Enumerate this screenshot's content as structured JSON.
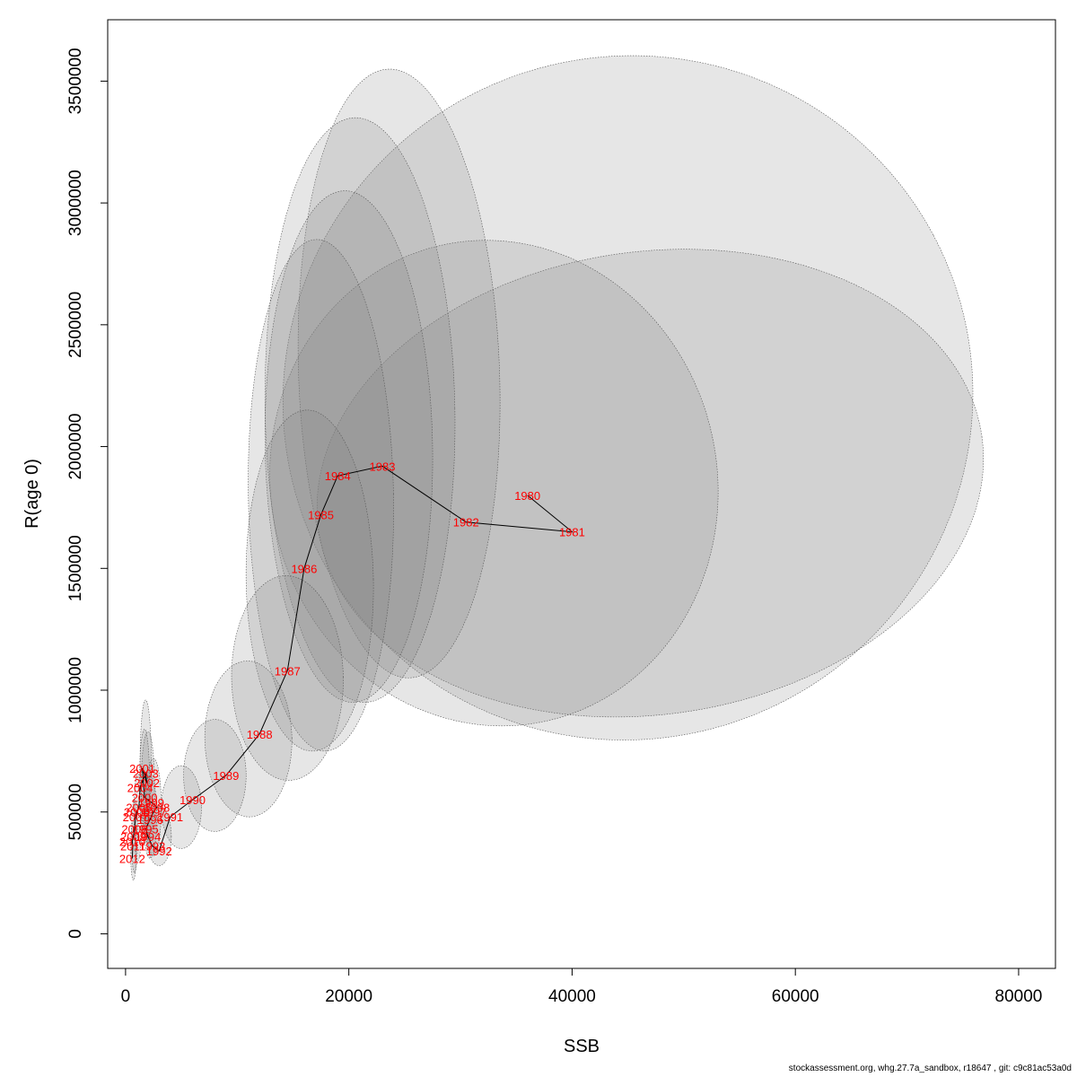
{
  "chart_data": {
    "type": "scatter",
    "xlabel": "SSB",
    "ylabel": "R(age 0)",
    "x_ticks": [
      0,
      20000,
      40000,
      60000,
      80000
    ],
    "x_tick_labels": [
      "0",
      "20000",
      "40000",
      "60000",
      "80000"
    ],
    "y_ticks": [
      0,
      500000,
      1000000,
      1500000,
      2000000,
      2500000,
      3000000,
      3500000
    ],
    "y_tick_labels": [
      "0",
      "500000",
      "1000000",
      "1500000",
      "2000000",
      "2500000",
      "3000000",
      "3500000"
    ],
    "xlim": [
      -1600,
      83300
    ],
    "ylim": [
      -142000,
      3752000
    ],
    "line_color": "#000000",
    "label_color": "#ff0000",
    "ellipse_fill": "#808080",
    "points": [
      {
        "year": "1980",
        "ssb": 36000,
        "r": 1800000
      },
      {
        "year": "1981",
        "ssb": 40000,
        "r": 1650000
      },
      {
        "year": "1982",
        "ssb": 30500,
        "r": 1690000
      },
      {
        "year": "1983",
        "ssb": 23000,
        "r": 1920000
      },
      {
        "year": "1984",
        "ssb": 19000,
        "r": 1880000
      },
      {
        "year": "1985",
        "ssb": 17500,
        "r": 1720000
      },
      {
        "year": "1986",
        "ssb": 16000,
        "r": 1500000
      },
      {
        "year": "1987",
        "ssb": 14500,
        "r": 1080000
      },
      {
        "year": "1988",
        "ssb": 12000,
        "r": 820000
      },
      {
        "year": "1989",
        "ssb": 9000,
        "r": 650000
      },
      {
        "year": "1990",
        "ssb": 6000,
        "r": 550000
      },
      {
        "year": "1991",
        "ssb": 4000,
        "r": 480000
      },
      {
        "year": "1992",
        "ssb": 3000,
        "r": 340000
      },
      {
        "year": "1993",
        "ssb": 2400,
        "r": 360000
      },
      {
        "year": "1994",
        "ssb": 2000,
        "r": 400000
      },
      {
        "year": "1995",
        "ssb": 1800,
        "r": 430000
      },
      {
        "year": "1996",
        "ssb": 2200,
        "r": 470000
      },
      {
        "year": "1997",
        "ssb": 2500,
        "r": 500000
      },
      {
        "year": "1998",
        "ssb": 2800,
        "r": 520000
      },
      {
        "year": "1999",
        "ssb": 2300,
        "r": 540000
      },
      {
        "year": "2000",
        "ssb": 1700,
        "r": 560000
      },
      {
        "year": "2001",
        "ssb": 1500,
        "r": 680000
      },
      {
        "year": "2002",
        "ssb": 1900,
        "r": 620000
      },
      {
        "year": "2003",
        "ssb": 1800,
        "r": 660000
      },
      {
        "year": "2004",
        "ssb": 1300,
        "r": 600000
      },
      {
        "year": "2005",
        "ssb": 1200,
        "r": 520000
      },
      {
        "year": "2006",
        "ssb": 1000,
        "r": 500000
      },
      {
        "year": "2007",
        "ssb": 900,
        "r": 480000
      },
      {
        "year": "2008",
        "ssb": 800,
        "r": 430000
      },
      {
        "year": "2009",
        "ssb": 700,
        "r": 400000
      },
      {
        "year": "2010",
        "ssb": 600,
        "r": 380000
      },
      {
        "year": "2011",
        "ssb": 650,
        "r": 360000
      },
      {
        "year": "2012",
        "ssb": 600,
        "r": 310000
      }
    ],
    "ellipses": [
      {
        "year": "1980",
        "cx": 45000,
        "cy": 2200000,
        "rx": 31000,
        "ry": 1400000,
        "rot": 28
      },
      {
        "year": "1981",
        "cx": 47000,
        "cy": 1850000,
        "rx": 30000,
        "ry": 950000,
        "rot": 8
      },
      {
        "year": "1982",
        "cx": 33000,
        "cy": 1850000,
        "rx": 20000,
        "ry": 1000000,
        "rot": 12
      },
      {
        "year": "1983",
        "cx": 24500,
        "cy": 2300000,
        "rx": 9000,
        "ry": 1250000,
        "rot": 2
      },
      {
        "year": "1984",
        "cx": 21000,
        "cy": 2150000,
        "rx": 8500,
        "ry": 1200000,
        "rot": 1
      },
      {
        "year": "1985",
        "cx": 20000,
        "cy": 2000000,
        "rx": 7500,
        "ry": 1050000,
        "rot": 1
      },
      {
        "year": "1986",
        "cx": 17500,
        "cy": 1800000,
        "rx": 6500,
        "ry": 1050000,
        "rot": 1
      },
      {
        "year": "1987",
        "cx": 16500,
        "cy": 1450000,
        "rx": 5700,
        "ry": 700000,
        "rot": 1
      },
      {
        "year": "1988",
        "cx": 14500,
        "cy": 1050000,
        "rx": 5000,
        "ry": 420000,
        "rot": 1
      },
      {
        "year": "1989",
        "cx": 11000,
        "cy": 800000,
        "rx": 3900,
        "ry": 320000,
        "rot": 1
      },
      {
        "year": "1990",
        "cx": 8000,
        "cy": 650000,
        "rx": 2800,
        "ry": 230000,
        "rot": 0
      },
      {
        "year": "1991",
        "cx": 5000,
        "cy": 520000,
        "rx": 1800,
        "ry": 170000,
        "rot": 0
      },
      {
        "year": "1992",
        "cx": 3000,
        "cy": 400000,
        "rx": 1100,
        "ry": 120000,
        "rot": 0
      },
      {
        "year": "2001",
        "cx": 1800,
        "cy": 700000,
        "rx": 500,
        "ry": 260000,
        "rot": 0
      },
      {
        "year": "2002",
        "cx": 2000,
        "cy": 600000,
        "rx": 600,
        "ry": 230000,
        "rot": 0
      },
      {
        "year": "2003",
        "cx": 1700,
        "cy": 620000,
        "rx": 450,
        "ry": 220000,
        "rot": 0
      },
      {
        "year": "1998",
        "cx": 2500,
        "cy": 520000,
        "rx": 700,
        "ry": 200000,
        "rot": 0
      },
      {
        "year": "1996",
        "cx": 2200,
        "cy": 480000,
        "rx": 600,
        "ry": 170000,
        "rot": 0
      },
      {
        "year": "2006",
        "cx": 1100,
        "cy": 480000,
        "rx": 350,
        "ry": 180000,
        "rot": 0
      },
      {
        "year": "2009",
        "cx": 800,
        "cy": 400000,
        "rx": 280,
        "ry": 150000,
        "rot": 0
      },
      {
        "year": "2012",
        "cx": 700,
        "cy": 340000,
        "rx": 250,
        "ry": 120000,
        "rot": 0
      }
    ]
  },
  "footer": "stockassessment.org, whg.27.7a_sandbox, r18647 , git: c9c81ac53a0d"
}
